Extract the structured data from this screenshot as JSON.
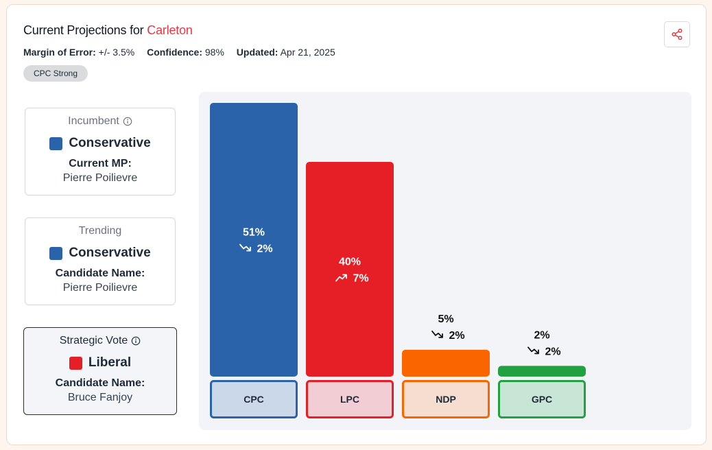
{
  "header": {
    "title_prefix": "Current Projections for",
    "riding": "Carleton",
    "meta": [
      {
        "label": "Margin of Error:",
        "value": "+/- 3.5%"
      },
      {
        "label": "Confidence:",
        "value": "98%"
      },
      {
        "label": "Updated:",
        "value": "Apr 21, 2025"
      }
    ],
    "badge": "CPC Strong",
    "share_icon": "share-icon"
  },
  "incumbent": {
    "label": "Incumbent",
    "party": "Conservative",
    "party_color": "#2b63ab",
    "field_label": "Current MP:",
    "field_value": "Pierre Poilievre"
  },
  "trending": {
    "label": "Trending",
    "party": "Conservative",
    "party_color": "#2b63ab",
    "field_label": "Candidate Name:",
    "field_value": "Pierre Poilievre"
  },
  "strategic": {
    "label": "Strategic Vote",
    "party": "Liberal",
    "party_color": "#e61e25",
    "field_label": "Candidate Name:",
    "field_value": "Bruce Fanjoy"
  },
  "chart_data": {
    "type": "bar",
    "title": "",
    "xlabel": "",
    "ylabel": "",
    "ylim": [
      0,
      51
    ],
    "categories": [
      "CPC",
      "LPC",
      "NDP",
      "GPC"
    ],
    "values": [
      51,
      40,
      5,
      2
    ],
    "value_labels": [
      "51%",
      "40%",
      "5%",
      "2%"
    ],
    "change_labels": [
      "2%",
      "7%",
      "2%",
      "2%"
    ],
    "trend": [
      "down",
      "up",
      "down",
      "down"
    ],
    "colors": [
      "#2b63ab",
      "#e61e25",
      "#fb6500",
      "#23a040"
    ],
    "label_bg": [
      "#cbd8ea",
      "#f2cdd3",
      "#f5ddd0",
      "#c8e6d6"
    ]
  }
}
